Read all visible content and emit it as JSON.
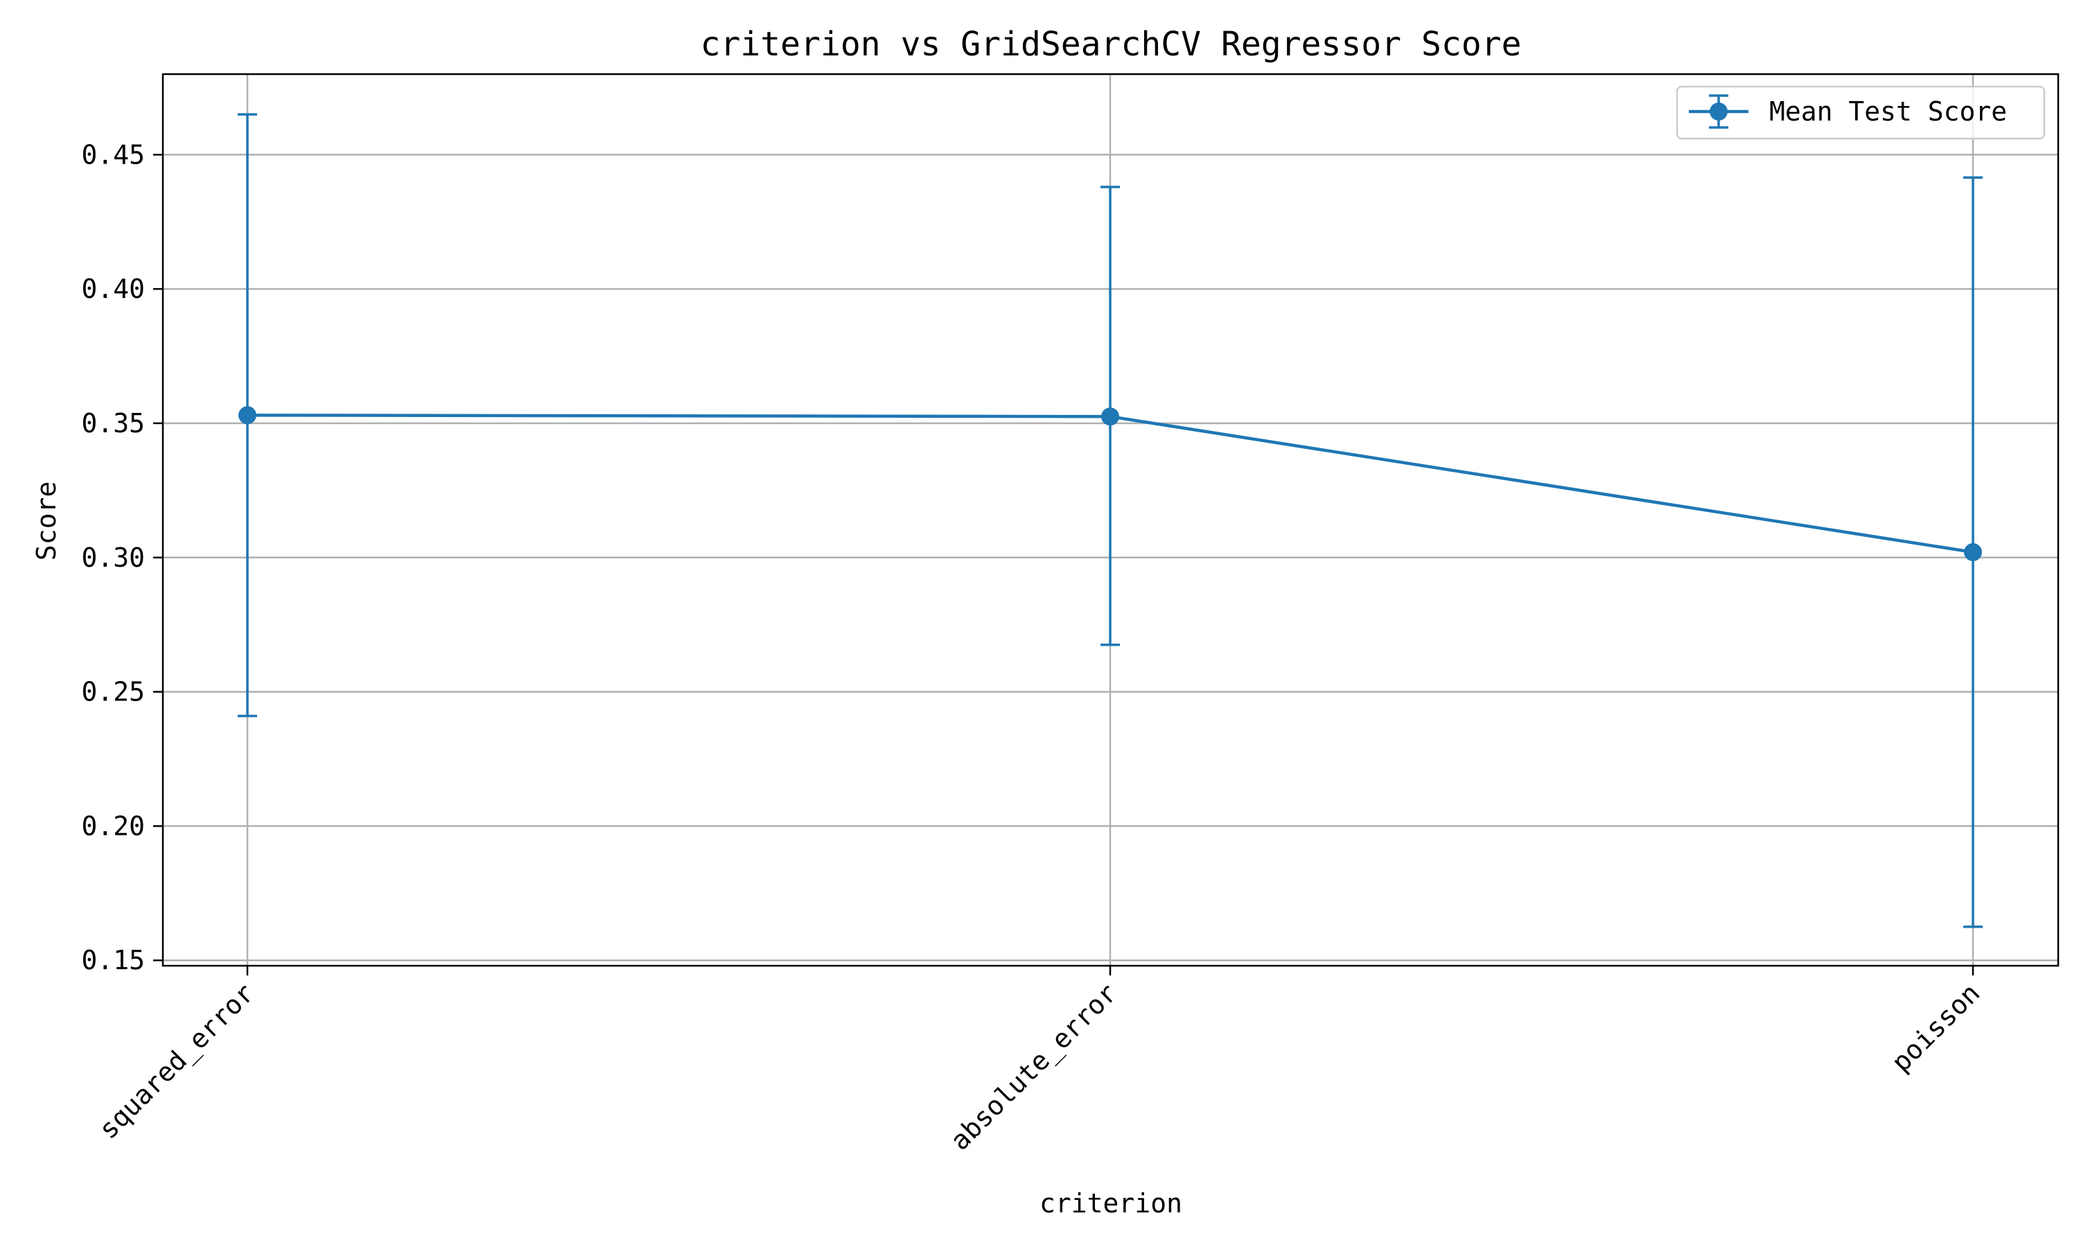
{
  "chart_data": {
    "type": "line",
    "title": "criterion vs GridSearchCV Regressor Score",
    "xlabel": "criterion",
    "ylabel": "Score",
    "categories": [
      "squared_error",
      "absolute_error",
      "poisson"
    ],
    "series": [
      {
        "name": "Mean Test Score",
        "values": [
          0.353,
          0.3525,
          0.302
        ],
        "error_low": [
          0.241,
          0.2675,
          0.1625
        ],
        "error_high": [
          0.465,
          0.438,
          0.4415
        ],
        "color": "#1f77b4"
      }
    ],
    "ylim": [
      0.148,
      0.48
    ],
    "yticks": [
      0.15,
      0.2,
      0.25,
      0.3,
      0.35,
      0.4,
      0.45
    ],
    "ytick_labels": [
      "0.15",
      "0.20",
      "0.25",
      "0.30",
      "0.35",
      "0.40",
      "0.45"
    ],
    "grid": true,
    "legend_position": "top-right"
  }
}
